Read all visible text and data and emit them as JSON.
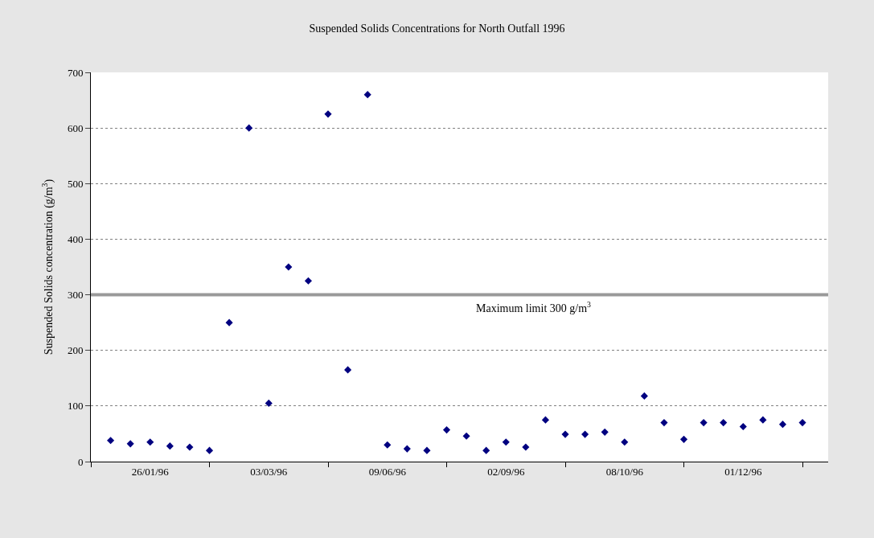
{
  "chart_data": {
    "type": "scatter",
    "title": "Suspended Solids Concentrations for North Outfall 1996",
    "ylabel": "Suspended Solids concentration (g/m$^{3}$)",
    "categories": [
      null,
      null,
      "26/01/96",
      null,
      null,
      null,
      null,
      null,
      "03/03/96",
      null,
      null,
      null,
      null,
      null,
      "09/06/96",
      null,
      null,
      null,
      null,
      null,
      "02/09/96",
      null,
      null,
      null,
      null,
      null,
      "08/10/96",
      null,
      null,
      null,
      null,
      null,
      "01/12/96",
      null,
      null,
      null
    ],
    "series": [
      {
        "color": "#000080",
        "values": [
          38,
          32,
          35,
          28,
          26,
          20,
          250,
          600,
          105,
          350,
          325,
          625,
          165,
          660,
          30,
          23,
          20,
          57,
          46,
          20,
          35,
          26,
          75,
          49,
          49,
          53,
          35,
          118,
          70,
          40,
          70,
          70,
          63,
          75,
          67,
          70
        ]
      }
    ],
    "ylim": [
      0,
      700
    ],
    "yticks": [
      0,
      100,
      200,
      300,
      400,
      500,
      600,
      700
    ],
    "grid": "y",
    "marker": "diamond",
    "legend": false,
    "ref_lines": [
      {
        "axis": "y",
        "value": 300,
        "label": "Maximum limit 300 g/m$^{3}$",
        "color": "#999999"
      }
    ]
  }
}
